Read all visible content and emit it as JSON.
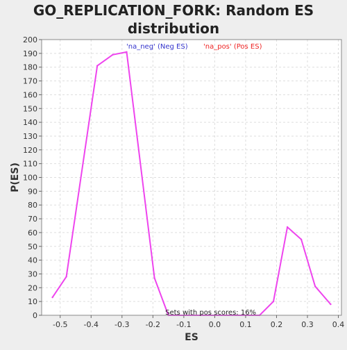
{
  "chart_data": {
    "type": "line",
    "title": "GO_REPLICATION_FORK: Random ES distribution",
    "title_lines": [
      "GO_REPLICATION_FORK: Random ES",
      "distribution"
    ],
    "xlabel": "ES",
    "ylabel": "P(ES)",
    "xlim": [
      -0.56,
      0.41
    ],
    "ylim": [
      0,
      200
    ],
    "x_ticks": [
      -0.5,
      -0.4,
      -0.3,
      -0.2,
      -0.1,
      0.0,
      0.1,
      0.2,
      0.3,
      0.4
    ],
    "x_tick_labels": [
      "-0.5",
      "-0.4",
      "-0.3",
      "-0.2",
      "-0.1",
      "0.0",
      "0.1",
      "0.2",
      "0.3",
      "0.4"
    ],
    "y_ticks": [
      0,
      10,
      20,
      30,
      40,
      50,
      60,
      70,
      80,
      90,
      100,
      110,
      120,
      130,
      140,
      150,
      160,
      170,
      180,
      190,
      200
    ],
    "grid": true,
    "legend_items": [
      {
        "text": "'na_neg' (Neg ES)",
        "color": "#3333cc"
      },
      {
        "text": "'na_pos' (Pos ES)",
        "color": "#ee2222"
      }
    ],
    "legend_position": "top-center",
    "annotation": "Sets with pos scores: 16%",
    "series": [
      {
        "color": "#ee44ee",
        "x": [
          -0.525,
          -0.48,
          -0.38,
          -0.33,
          -0.285,
          -0.195,
          -0.15,
          0.145,
          0.19,
          0.235,
          0.28,
          0.325,
          0.375
        ],
        "y": [
          13,
          28,
          181,
          189,
          191,
          27,
          0,
          0,
          10,
          64,
          55,
          21,
          8
        ]
      }
    ]
  }
}
